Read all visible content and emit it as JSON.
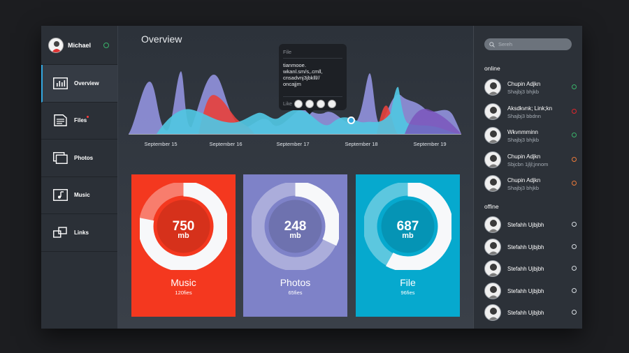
{
  "colors": {
    "accent": "#34a8e0",
    "online": "#39b36a",
    "busy": "#e0262c",
    "away": "#ec7a3a",
    "offline": "#d8dde2"
  },
  "profile": {
    "name": "Michael"
  },
  "nav": [
    {
      "label": "Overview",
      "icon": "chart-icon"
    },
    {
      "label": "Files",
      "icon": "file-icon"
    },
    {
      "label": "Photos",
      "icon": "photos-icon"
    },
    {
      "label": "Music",
      "icon": "music-icon"
    },
    {
      "label": "Links",
      "icon": "links-icon"
    }
  ],
  "main": {
    "title": "Overview",
    "chart_dates": [
      "September 15",
      "September 16",
      "September 17",
      "September 18",
      "September 19"
    ]
  },
  "tooltip": {
    "header": "File",
    "body_lines": [
      "tianmooe.",
      "wkanl.sm/s,.cmll,",
      "cnsadvnj3jbklll//",
      "oncajjm"
    ],
    "like_label": "Like"
  },
  "cards": [
    {
      "value": "750",
      "unit": "mb",
      "title": "Music",
      "subtitle": "120fies",
      "color": "#f4381f",
      "fraction": 0.78
    },
    {
      "value": "248",
      "unit": "mb",
      "title": "Photos",
      "subtitle": "65fies",
      "color": "#7e82c8",
      "fraction": 0.32
    },
    {
      "value": "687",
      "unit": "mb",
      "title": "File",
      "subtitle": "96fies",
      "color": "#06a9ce",
      "fraction": 0.58
    }
  ],
  "search": {
    "placeholder": "Sereh"
  },
  "online_label": "online",
  "offline_label": "offine",
  "contacts_online": [
    {
      "name": "Chupin Adjkn",
      "sub": "Shajbj3 bhjkb",
      "status": "online"
    },
    {
      "name": "Aksdkvnk; Link;kn",
      "sub": "Shajbj3 bbdnn",
      "status": "busy"
    },
    {
      "name": "Wkvnmminn",
      "sub": "Shajbj3 bhjkb",
      "status": "online"
    },
    {
      "name": "Chupin Adjkn",
      "sub": "Sbjcbn 1jljl;jnnom",
      "status": "away"
    },
    {
      "name": "Chupin Adjkn",
      "sub": "Shajbj3 bhjkb",
      "status": "away"
    }
  ],
  "contacts_offline": [
    {
      "name": "Stefahh Ujbjbh",
      "status": "offline"
    },
    {
      "name": "Stefahh Ujbjbh",
      "status": "offline"
    },
    {
      "name": "Stefahh Ujbjbh",
      "status": "offline"
    },
    {
      "name": "Stefahh Ujbjbh",
      "status": "offline"
    },
    {
      "name": "Stefahh Ujbjbh",
      "status": "offline"
    }
  ]
}
